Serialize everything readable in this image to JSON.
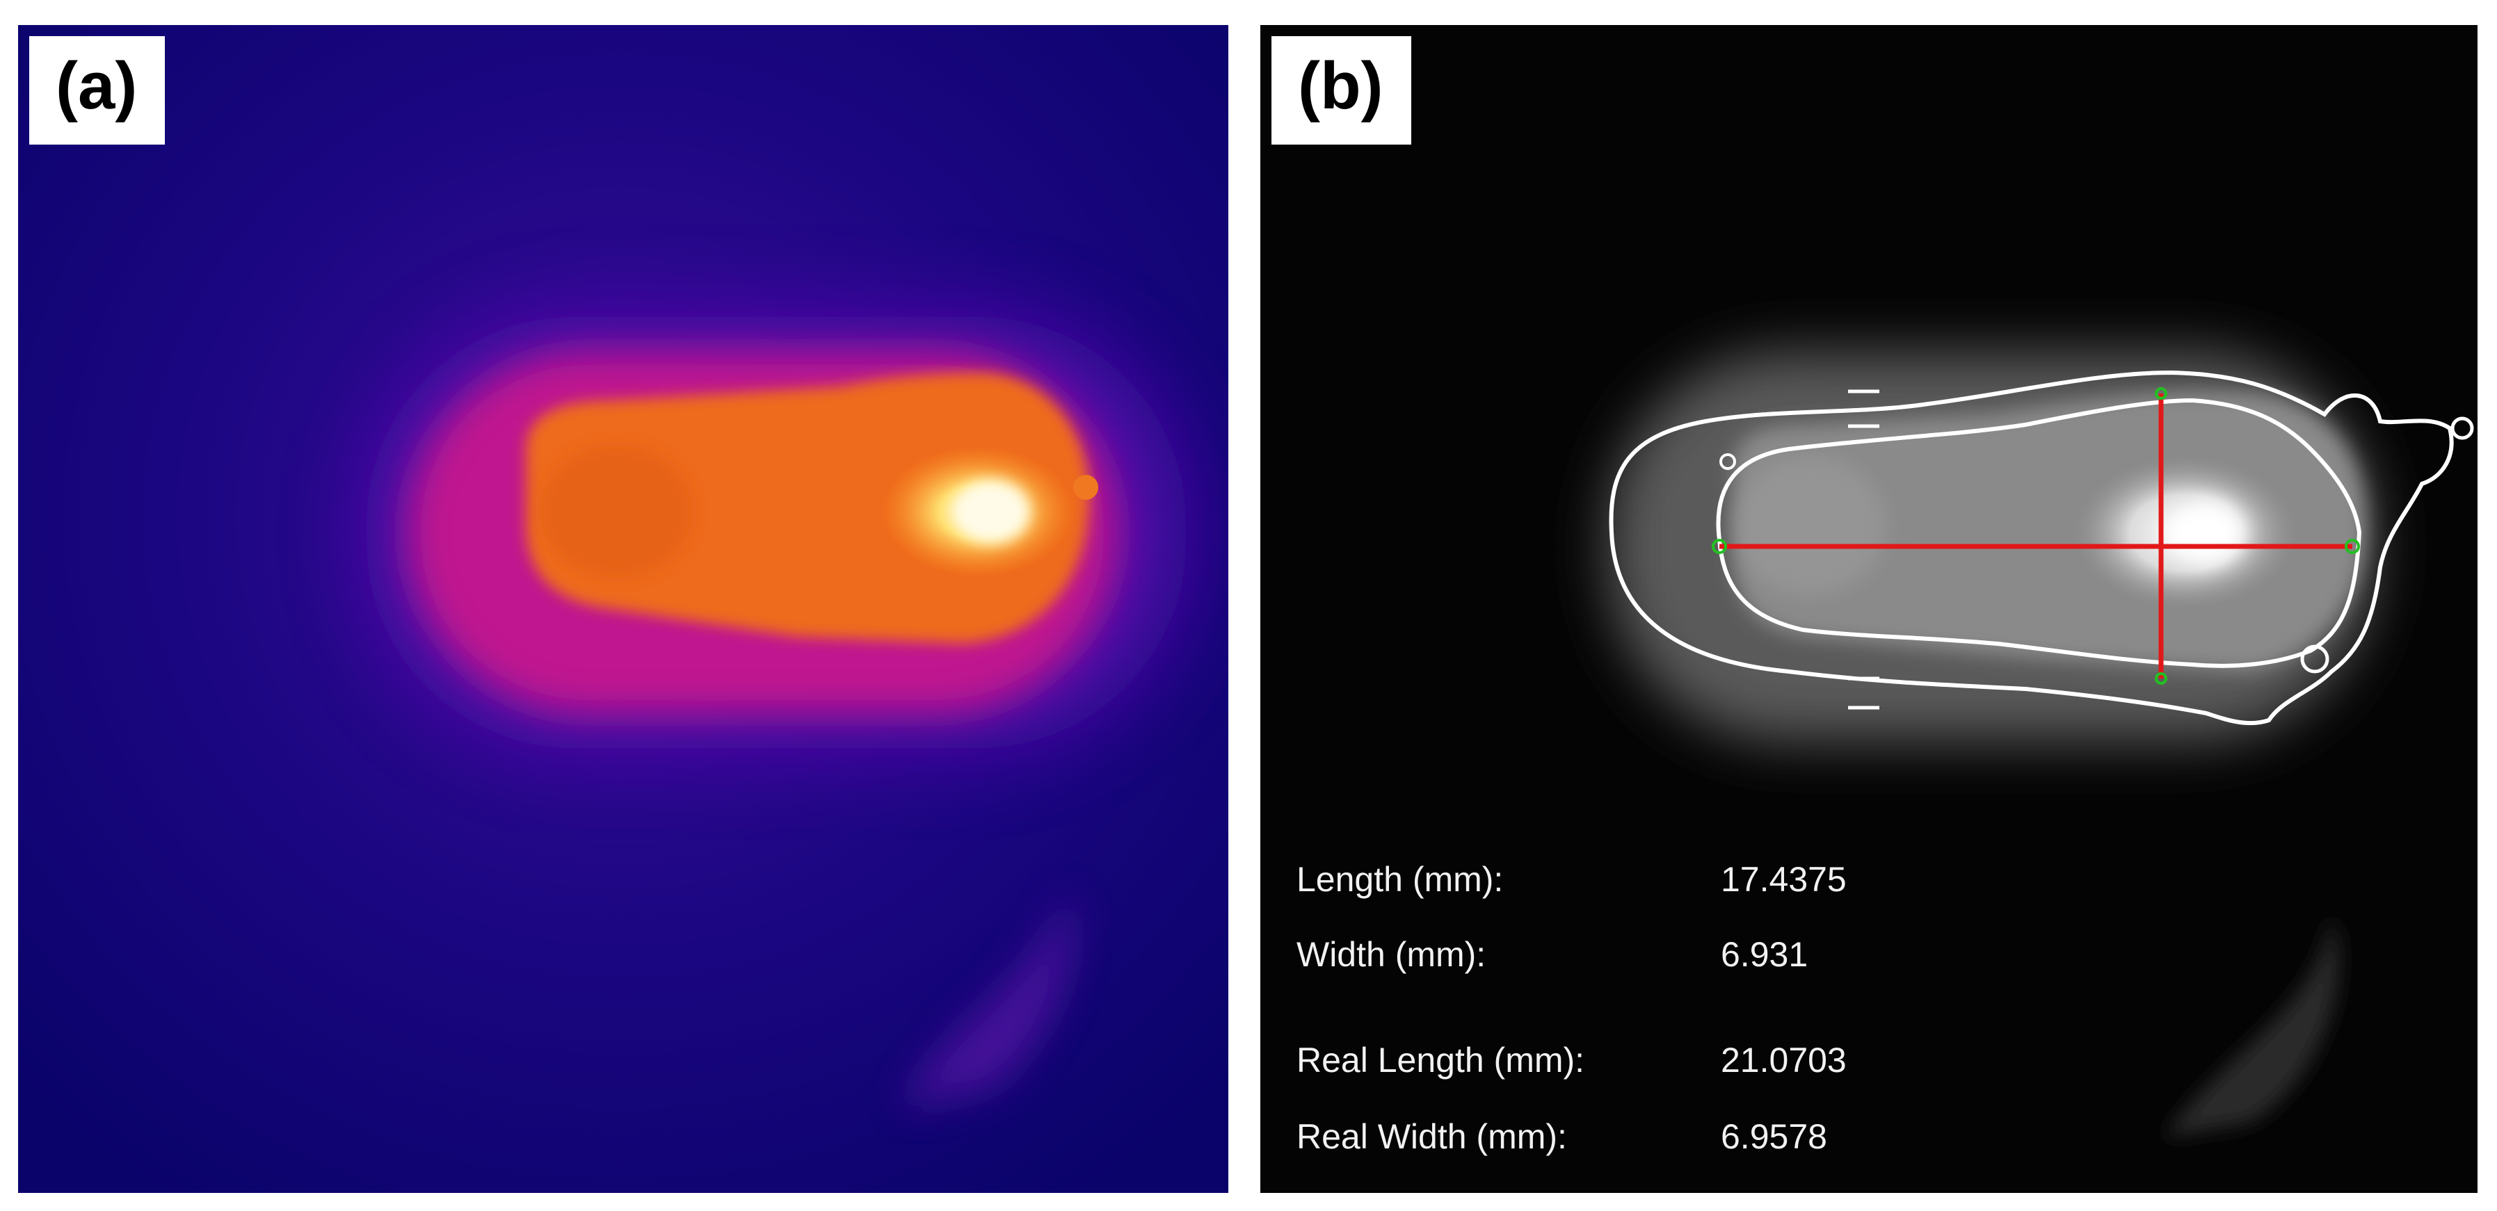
{
  "panels": [
    {
      "label": "(a)",
      "description_colormap": "thermal",
      "colors": {
        "background": "#0c0470",
        "halo": "#c0188f",
        "core": "#ee6a1a",
        "hotspot": "#fff4b0"
      }
    },
    {
      "label": "(b)",
      "colors": {
        "background": "#040404",
        "body": "#8a8a8a",
        "contour": "#ffffff",
        "axis_lines": "#e21818",
        "endpoints": "#22c022"
      },
      "measurements": [
        {
          "label": "Length (mm):",
          "value": "17.4375"
        },
        {
          "label": "Width (mm):",
          "value": "6.931"
        },
        {
          "label": "Real Length (mm):",
          "value": "21.0703"
        },
        {
          "label": "Real Width (mm):",
          "value": "6.9578"
        }
      ]
    }
  ]
}
